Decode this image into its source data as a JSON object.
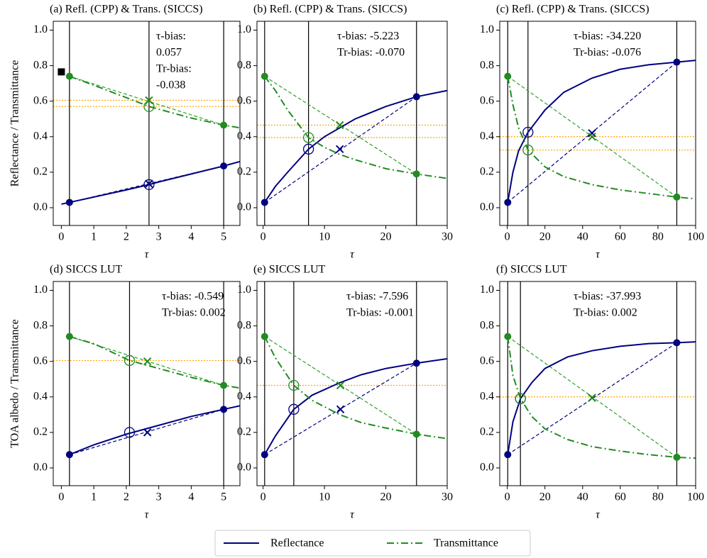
{
  "chart_data": [
    {
      "type": "line",
      "title": "(a) Refl. (CPP) & Trans. (SICCS)",
      "xlabel": "τ",
      "ylabel": "Reflectance / Transmittance",
      "annotation": [
        "τ-bias:",
        "0.057",
        "Tr-bias:",
        "-0.038"
      ],
      "xlim": [
        -0.25,
        5.5
      ],
      "ylim": [
        -0.1,
        1.05
      ],
      "xticks": [
        0,
        1,
        2,
        3,
        4,
        5
      ],
      "yticks": [
        {
          "value": 0,
          "label": "0.0"
        },
        0.2,
        0.4,
        0.6,
        0.8,
        {
          "value": 1,
          "label": "1.0"
        }
      ],
      "series": [
        {
          "name": "Reflectance",
          "color": "#000080",
          "dash": "solid",
          "x": [
            0,
            0.25,
            1,
            2,
            2.7,
            3,
            4,
            5,
            5.5
          ],
          "values": [
            0.02,
            0.03,
            0.06,
            0.1,
            0.13,
            0.145,
            0.19,
            0.235,
            0.26
          ]
        },
        {
          "name": "Transmittance",
          "color": "#228b22",
          "dash": "dashdot",
          "x": [
            0.25,
            1,
            2,
            2.7,
            3,
            4,
            5,
            5.5
          ],
          "values": [
            0.74,
            0.69,
            0.62,
            0.57,
            0.555,
            0.505,
            0.465,
            0.45
          ]
        }
      ],
      "reference_lines": [
        {
          "color": "#000080",
          "dash": "dashed",
          "x": [
            0.25,
            5
          ],
          "values": [
            0.03,
            0.235
          ]
        },
        {
          "color": "#2ca02c",
          "dash": "dashed",
          "x": [
            0.25,
            5
          ],
          "values": [
            0.74,
            0.465
          ]
        }
      ],
      "vlines": [
        0.25,
        2.7,
        5
      ],
      "hlines": [
        0.605,
        0.57
      ],
      "hline_color": "#ffa500",
      "markers": [
        {
          "x": 0.25,
          "y": 0.03,
          "marker": "filled",
          "color": "#000080"
        },
        {
          "x": 5,
          "y": 0.235,
          "marker": "filled",
          "color": "#000080"
        },
        {
          "x": 0.25,
          "y": 0.74,
          "marker": "filled",
          "color": "#228b22"
        },
        {
          "x": 5,
          "y": 0.465,
          "marker": "filled",
          "color": "#228b22"
        },
        {
          "x": 2.7,
          "y": 0.13,
          "marker": "open",
          "color": "#000080"
        },
        {
          "x": 2.7,
          "y": 0.135,
          "marker": "x",
          "color": "#000080"
        },
        {
          "x": 2.7,
          "y": 0.57,
          "marker": "open",
          "color": "#228b22"
        },
        {
          "x": 2.7,
          "y": 0.605,
          "marker": "x",
          "color": "#228b22"
        },
        {
          "x": 0,
          "y": 0.765,
          "marker": "square",
          "color": "#000000"
        }
      ]
    },
    {
      "type": "line",
      "title": "(b) Refl. (CPP) & Trans. (SICCS)",
      "xlabel": "τ",
      "annotation": [
        "τ-bias: -5.223",
        "Tr-bias: -0.070"
      ],
      "xlim": [
        -1,
        30
      ],
      "ylim": [
        -0.1,
        1.05
      ],
      "xticks": [
        0,
        10,
        20,
        30
      ],
      "yticks": [
        {
          "value": 0,
          "label": "0.0"
        },
        0.2,
        0.4,
        0.6,
        0.8,
        {
          "value": 1,
          "label": "1.0"
        }
      ],
      "series": [
        {
          "name": "Reflectance",
          "color": "#000080",
          "dash": "solid",
          "x": [
            0.25,
            2,
            4,
            7.4,
            10,
            15,
            20,
            25,
            30
          ],
          "values": [
            0.03,
            0.12,
            0.2,
            0.33,
            0.4,
            0.5,
            0.57,
            0.625,
            0.66
          ]
        },
        {
          "name": "Transmittance",
          "color": "#228b22",
          "dash": "dashdot",
          "x": [
            0.25,
            2,
            4,
            7.4,
            10,
            12.5,
            15,
            20,
            25,
            30
          ],
          "values": [
            0.74,
            0.66,
            0.55,
            0.395,
            0.34,
            0.3,
            0.27,
            0.22,
            0.19,
            0.165
          ]
        }
      ],
      "reference_lines": [
        {
          "color": "#000080",
          "dash": "dashed",
          "x": [
            0.25,
            25
          ],
          "values": [
            0.03,
            0.625
          ]
        },
        {
          "color": "#2ca02c",
          "dash": "dashed",
          "x": [
            0.25,
            25
          ],
          "values": [
            0.74,
            0.19
          ]
        }
      ],
      "vlines": [
        0.25,
        7.4,
        25
      ],
      "hlines": [
        0.465,
        0.395
      ],
      "hline_color": "#ffa500",
      "markers": [
        {
          "x": 0.25,
          "y": 0.03,
          "marker": "filled",
          "color": "#000080"
        },
        {
          "x": 25,
          "y": 0.625,
          "marker": "filled",
          "color": "#000080"
        },
        {
          "x": 0.25,
          "y": 0.74,
          "marker": "filled",
          "color": "#228b22"
        },
        {
          "x": 25,
          "y": 0.19,
          "marker": "filled",
          "color": "#228b22"
        },
        {
          "x": 7.4,
          "y": 0.33,
          "marker": "open",
          "color": "#000080"
        },
        {
          "x": 12.5,
          "y": 0.33,
          "marker": "x",
          "color": "#000080"
        },
        {
          "x": 7.4,
          "y": 0.395,
          "marker": "open",
          "color": "#228b22"
        },
        {
          "x": 12.5,
          "y": 0.465,
          "marker": "x",
          "color": "#228b22"
        }
      ]
    },
    {
      "type": "line",
      "title": "(c) Refl. (CPP) & Trans. (SICCS)",
      "xlabel": "τ",
      "annotation": [
        "τ-bias: -34.220",
        "Tr-bias: -0.076"
      ],
      "xlim": [
        -4,
        100
      ],
      "ylim": [
        -0.1,
        1.05
      ],
      "xticks": [
        0,
        20,
        40,
        60,
        80,
        100
      ],
      "yticks": [
        {
          "value": 0,
          "label": "0.0"
        },
        0.2,
        0.4,
        0.6,
        0.8,
        {
          "value": 1,
          "label": "1.0"
        }
      ],
      "series": [
        {
          "name": "Reflectance",
          "color": "#000080",
          "dash": "solid",
          "x": [
            0.25,
            3,
            6,
            11,
            20,
            30,
            45,
            60,
            75,
            90,
            100
          ],
          "values": [
            0.03,
            0.2,
            0.32,
            0.425,
            0.55,
            0.65,
            0.73,
            0.78,
            0.805,
            0.82,
            0.83
          ]
        },
        {
          "name": "Transmittance",
          "color": "#228b22",
          "dash": "dashdot",
          "x": [
            0.25,
            3,
            6,
            11,
            20,
            30,
            45,
            60,
            75,
            90,
            100
          ],
          "values": [
            0.74,
            0.58,
            0.45,
            0.325,
            0.23,
            0.175,
            0.13,
            0.1,
            0.08,
            0.06,
            0.05
          ]
        }
      ],
      "reference_lines": [
        {
          "color": "#000080",
          "dash": "dashed",
          "x": [
            0.25,
            90
          ],
          "values": [
            0.03,
            0.82
          ]
        },
        {
          "color": "#2ca02c",
          "dash": "dashed",
          "x": [
            0.25,
            90
          ],
          "values": [
            0.74,
            0.06
          ]
        }
      ],
      "vlines": [
        0.25,
        11,
        90
      ],
      "hlines": [
        0.4,
        0.325
      ],
      "hline_color": "#ffa500",
      "markers": [
        {
          "x": 0.25,
          "y": 0.03,
          "marker": "filled",
          "color": "#000080"
        },
        {
          "x": 90,
          "y": 0.82,
          "marker": "filled",
          "color": "#000080"
        },
        {
          "x": 0.25,
          "y": 0.74,
          "marker": "filled",
          "color": "#228b22"
        },
        {
          "x": 90,
          "y": 0.06,
          "marker": "filled",
          "color": "#228b22"
        },
        {
          "x": 11,
          "y": 0.425,
          "marker": "open",
          "color": "#000080"
        },
        {
          "x": 45,
          "y": 0.42,
          "marker": "x",
          "color": "#000080"
        },
        {
          "x": 11,
          "y": 0.325,
          "marker": "open",
          "color": "#228b22"
        },
        {
          "x": 45,
          "y": 0.4,
          "marker": "x",
          "color": "#228b22"
        }
      ]
    },
    {
      "type": "line",
      "title": "(d) SICCS LUT",
      "xlabel": "τ",
      "ylabel": "TOA albedo / Transmittance",
      "annotation": [
        "τ-bias: -0.549",
        "Tr-bias: 0.002"
      ],
      "xlim": [
        -0.25,
        5.5
      ],
      "ylim": [
        -0.1,
        1.05
      ],
      "xticks": [
        0,
        1,
        2,
        3,
        4,
        5
      ],
      "yticks": [
        {
          "value": 0,
          "label": "0.0"
        },
        0.2,
        0.4,
        0.6,
        0.8,
        {
          "value": 1,
          "label": "1.0"
        }
      ],
      "series": [
        {
          "name": "Reflectance",
          "color": "#000080",
          "dash": "solid",
          "x": [
            0.25,
            1,
            2,
            3,
            4,
            5,
            5.5
          ],
          "values": [
            0.075,
            0.13,
            0.19,
            0.24,
            0.29,
            0.33,
            0.35
          ]
        },
        {
          "name": "Transmittance",
          "color": "#228b22",
          "dash": "dashdot",
          "x": [
            0.25,
            1,
            2.1,
            3,
            4,
            5,
            5.5
          ],
          "values": [
            0.74,
            0.7,
            0.605,
            0.56,
            0.51,
            0.465,
            0.45
          ]
        }
      ],
      "reference_lines": [
        {
          "color": "#000080",
          "dash": "dashed",
          "x": [
            0.25,
            5
          ],
          "values": [
            0.075,
            0.33
          ]
        },
        {
          "color": "#2ca02c",
          "dash": "dashed",
          "x": [
            0.25,
            5
          ],
          "values": [
            0.74,
            0.465
          ]
        }
      ],
      "vlines": [
        0.25,
        2.1,
        5
      ],
      "hlines": [
        0.605
      ],
      "hline_color": "#ffa500",
      "markers": [
        {
          "x": 0.25,
          "y": 0.075,
          "marker": "filled",
          "color": "#000080"
        },
        {
          "x": 5,
          "y": 0.33,
          "marker": "filled",
          "color": "#000080"
        },
        {
          "x": 0.25,
          "y": 0.74,
          "marker": "filled",
          "color": "#228b22"
        },
        {
          "x": 5,
          "y": 0.465,
          "marker": "filled",
          "color": "#228b22"
        },
        {
          "x": 2.1,
          "y": 0.2,
          "marker": "open",
          "color": "#000080"
        },
        {
          "x": 2.65,
          "y": 0.2,
          "marker": "x",
          "color": "#000080"
        },
        {
          "x": 2.1,
          "y": 0.605,
          "marker": "open",
          "color": "#228b22"
        },
        {
          "x": 2.65,
          "y": 0.6,
          "marker": "x",
          "color": "#228b22"
        }
      ]
    },
    {
      "type": "line",
      "title": "(e) SICCS LUT",
      "xlabel": "τ",
      "annotation": [
        "τ-bias: -7.596",
        "Tr-bias: -0.001"
      ],
      "xlim": [
        -1,
        30
      ],
      "ylim": [
        -0.1,
        1.05
      ],
      "xticks": [
        0,
        10,
        20,
        30
      ],
      "yticks": [
        {
          "value": 0,
          "label": "0.0"
        },
        0.2,
        0.4,
        0.6,
        0.8,
        {
          "value": 1,
          "label": "1.0"
        }
      ],
      "series": [
        {
          "name": "Reflectance",
          "color": "#000080",
          "dash": "solid",
          "x": [
            0.25,
            2,
            5,
            8,
            12.5,
            16,
            20,
            25,
            30
          ],
          "values": [
            0.075,
            0.18,
            0.33,
            0.41,
            0.48,
            0.525,
            0.56,
            0.59,
            0.615
          ]
        },
        {
          "name": "Transmittance",
          "color": "#228b22",
          "dash": "dashdot",
          "x": [
            0.25,
            2,
            5,
            8,
            12.5,
            16,
            20,
            25,
            30
          ],
          "values": [
            0.74,
            0.62,
            0.465,
            0.38,
            0.3,
            0.255,
            0.225,
            0.19,
            0.165
          ]
        }
      ],
      "reference_lines": [
        {
          "color": "#000080",
          "dash": "dashed",
          "x": [
            0.25,
            25
          ],
          "values": [
            0.075,
            0.59
          ]
        },
        {
          "color": "#2ca02c",
          "dash": "dashed",
          "x": [
            0.25,
            25
          ],
          "values": [
            0.74,
            0.19
          ]
        }
      ],
      "vlines": [
        0.25,
        5,
        25
      ],
      "hlines": [
        0.465
      ],
      "hline_color": "#ffa500",
      "markers": [
        {
          "x": 0.25,
          "y": 0.075,
          "marker": "filled",
          "color": "#000080"
        },
        {
          "x": 25,
          "y": 0.59,
          "marker": "filled",
          "color": "#000080"
        },
        {
          "x": 0.25,
          "y": 0.74,
          "marker": "filled",
          "color": "#228b22"
        },
        {
          "x": 25,
          "y": 0.19,
          "marker": "filled",
          "color": "#228b22"
        },
        {
          "x": 5,
          "y": 0.33,
          "marker": "open",
          "color": "#000080"
        },
        {
          "x": 12.6,
          "y": 0.33,
          "marker": "x",
          "color": "#000080"
        },
        {
          "x": 5,
          "y": 0.465,
          "marker": "open",
          "color": "#228b22"
        },
        {
          "x": 12.6,
          "y": 0.465,
          "marker": "x",
          "color": "#228b22"
        }
      ]
    },
    {
      "type": "line",
      "title": "(f) SICCS LUT",
      "xlabel": "τ",
      "annotation": [
        "τ-bias: -37.993",
        "Tr-bias: 0.002"
      ],
      "xlim": [
        -4,
        100
      ],
      "ylim": [
        -0.1,
        1.05
      ],
      "xticks": [
        0,
        20,
        40,
        60,
        80,
        100
      ],
      "yticks": [
        {
          "value": 0,
          "label": "0.0"
        },
        0.2,
        0.4,
        0.6,
        0.8,
        {
          "value": 1,
          "label": "1.0"
        }
      ],
      "series": [
        {
          "name": "Reflectance",
          "color": "#000080",
          "dash": "solid",
          "x": [
            0.25,
            3,
            7,
            13,
            20,
            32,
            45,
            60,
            75,
            90,
            100
          ],
          "values": [
            0.075,
            0.26,
            0.39,
            0.48,
            0.56,
            0.625,
            0.66,
            0.685,
            0.7,
            0.705,
            0.71
          ]
        },
        {
          "name": "Transmittance",
          "color": "#228b22",
          "dash": "dashdot",
          "x": [
            0.25,
            3,
            7,
            13,
            20,
            32,
            45,
            60,
            75,
            90,
            100
          ],
          "values": [
            0.74,
            0.52,
            0.39,
            0.29,
            0.22,
            0.16,
            0.12,
            0.095,
            0.075,
            0.06,
            0.055
          ]
        }
      ],
      "reference_lines": [
        {
          "color": "#000080",
          "dash": "dashed",
          "x": [
            0.25,
            90
          ],
          "values": [
            0.075,
            0.705
          ]
        },
        {
          "color": "#2ca02c",
          "dash": "dashed",
          "x": [
            0.25,
            90
          ],
          "values": [
            0.74,
            0.06
          ]
        }
      ],
      "vlines": [
        0.25,
        7,
        90
      ],
      "hlines": [
        0.4
      ],
      "hline_color": "#ffa500",
      "markers": [
        {
          "x": 0.25,
          "y": 0.075,
          "marker": "filled",
          "color": "#000080"
        },
        {
          "x": 90,
          "y": 0.705,
          "marker": "filled",
          "color": "#000080"
        },
        {
          "x": 0.25,
          "y": 0.74,
          "marker": "filled",
          "color": "#228b22"
        },
        {
          "x": 90,
          "y": 0.06,
          "marker": "filled",
          "color": "#228b22"
        },
        {
          "x": 7,
          "y": 0.39,
          "marker": "open",
          "color": "#000080"
        },
        {
          "x": 45,
          "y": 0.395,
          "marker": "x",
          "color": "#000080"
        },
        {
          "x": 7,
          "y": 0.39,
          "marker": "open",
          "color": "#228b22"
        },
        {
          "x": 45,
          "y": 0.395,
          "marker": "x",
          "color": "#228b22"
        }
      ]
    }
  ]
}
